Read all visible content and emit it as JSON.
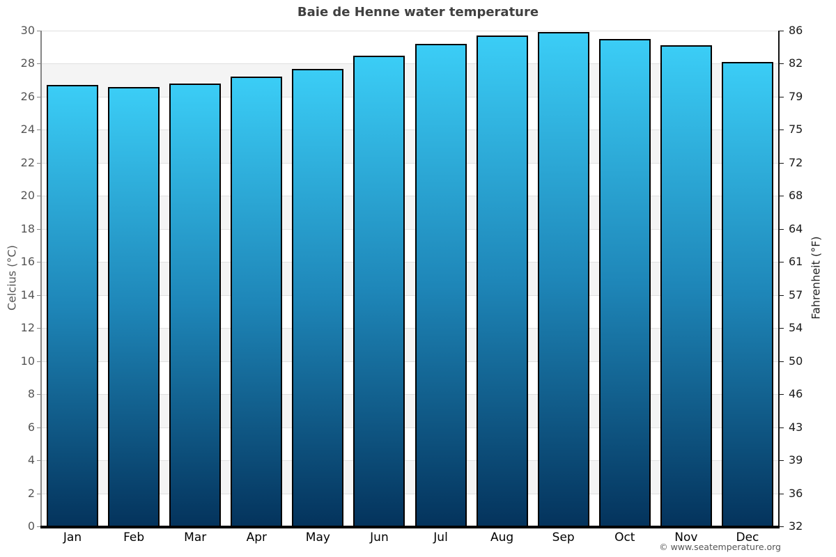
{
  "title": "Baie de Henne water temperature",
  "footer": {
    "copyright": "© www.seatemperature.org"
  },
  "chart_data": {
    "type": "bar",
    "title": "Baie de Henne water temperature",
    "categories": [
      "Jan",
      "Feb",
      "Mar",
      "Apr",
      "May",
      "Jun",
      "Jul",
      "Aug",
      "Sep",
      "Oct",
      "Nov",
      "Dec"
    ],
    "values": [
      26.7,
      26.6,
      26.8,
      27.2,
      27.7,
      28.5,
      29.2,
      29.7,
      29.9,
      29.5,
      29.1,
      28.1
    ],
    "ylabel_left": "Celcius (°C)",
    "ylabel_right": "Fahrenheit (°F)",
    "ylim": [
      0,
      30
    ],
    "ytick_step": 2,
    "yticks_celsius": [
      0,
      2,
      4,
      6,
      8,
      10,
      12,
      14,
      16,
      18,
      20,
      22,
      24,
      26,
      28,
      30
    ],
    "yticks_fahrenheit": [
      32,
      36,
      39,
      43,
      46,
      50,
      54,
      57,
      61,
      64,
      68,
      72,
      75,
      79,
      82,
      86
    ],
    "grid": "alternating-horizontal-bands",
    "legend_position": "none",
    "colors": {
      "bar_gradient_top": "#3bcdf6",
      "bar_gradient_mid": "#1e86b8",
      "bar_gradient_bottom": "#04335c",
      "bar_border": "#000000",
      "band_shaded": "#f4f4f4",
      "band_plain": "#ffffff",
      "gridline": "#e0e0e0",
      "axis_left": "#858585",
      "axis_right": "#111111",
      "baseline": "#000000",
      "tick_label_left": "#555555",
      "tick_label_right": "#1a1a1a",
      "month_label": "#000000",
      "title": "#404040",
      "copyright": "#555555"
    }
  }
}
